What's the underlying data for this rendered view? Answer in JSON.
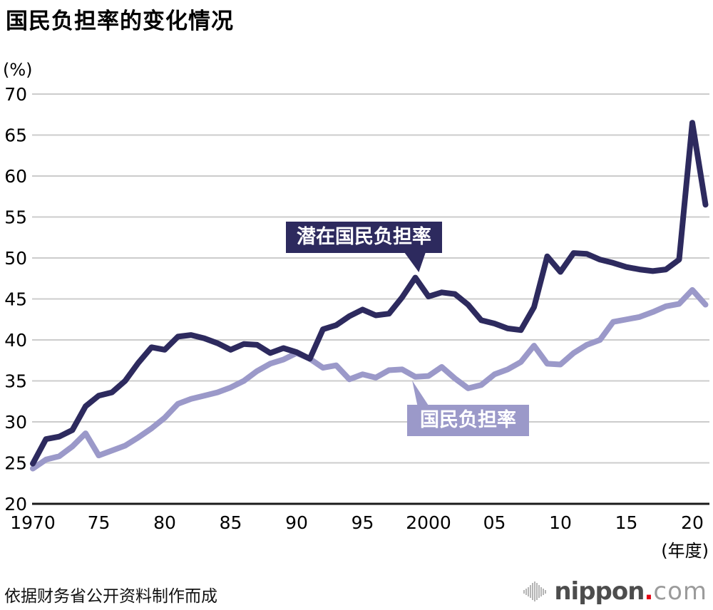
{
  "chart_data": {
    "type": "line",
    "title": "国民负担率的变化情况",
    "y_axis_unit": "(%)",
    "x_axis_unit": "(年度)",
    "ylim": [
      20,
      70
    ],
    "y_ticks": [
      20,
      25,
      30,
      35,
      40,
      45,
      50,
      55,
      60,
      65,
      70
    ],
    "grid": true,
    "legend_position": "inline-callout-labels",
    "x_ticks": [
      {
        "label": "1970",
        "year": 1970
      },
      {
        "label": "75",
        "year": 1975
      },
      {
        "label": "80",
        "year": 1980
      },
      {
        "label": "85",
        "year": 1985
      },
      {
        "label": "90",
        "year": 1990
      },
      {
        "label": "95",
        "year": 1995
      },
      {
        "label": "2000",
        "year": 2000
      },
      {
        "label": "05",
        "year": 2005
      },
      {
        "label": "10",
        "year": 2010
      },
      {
        "label": "15",
        "year": 2015
      },
      {
        "label": "20",
        "year": 2020
      }
    ],
    "years": [
      1970,
      1971,
      1972,
      1973,
      1974,
      1975,
      1976,
      1977,
      1978,
      1979,
      1980,
      1981,
      1982,
      1983,
      1984,
      1985,
      1986,
      1987,
      1988,
      1989,
      1990,
      1991,
      1992,
      1993,
      1994,
      1995,
      1996,
      1997,
      1998,
      1999,
      2000,
      2001,
      2002,
      2003,
      2004,
      2005,
      2006,
      2007,
      2008,
      2009,
      2010,
      2011,
      2012,
      2013,
      2014,
      2015,
      2016,
      2017,
      2018,
      2019,
      2020,
      2021
    ],
    "series": [
      {
        "name": "潜在国民负担率",
        "color": "#2d2a5e",
        "values": [
          24.9,
          27.9,
          28.2,
          29.0,
          31.9,
          33.2,
          33.6,
          35.0,
          37.2,
          39.1,
          38.8,
          40.4,
          40.6,
          40.2,
          39.6,
          38.8,
          39.5,
          39.4,
          38.4,
          39.0,
          38.5,
          37.7,
          41.3,
          41.8,
          42.9,
          43.7,
          43.0,
          43.2,
          45.2,
          47.6,
          45.3,
          45.8,
          45.6,
          44.3,
          42.4,
          42.0,
          41.4,
          41.2,
          44.0,
          50.2,
          48.3,
          50.6,
          50.5,
          49.8,
          49.4,
          48.9,
          48.6,
          48.4,
          48.6,
          49.8,
          66.5,
          56.5
        ]
      },
      {
        "name": "国民负担率",
        "color": "#9b99c9",
        "values": [
          24.3,
          25.4,
          25.8,
          27.0,
          28.6,
          25.9,
          26.5,
          27.1,
          28.1,
          29.2,
          30.5,
          32.2,
          32.8,
          33.2,
          33.6,
          34.2,
          35.0,
          36.2,
          37.1,
          37.6,
          38.4,
          37.7,
          36.6,
          36.9,
          35.2,
          35.8,
          35.4,
          36.3,
          36.4,
          35.5,
          35.6,
          36.7,
          35.3,
          34.1,
          34.5,
          35.8,
          36.4,
          37.3,
          39.3,
          37.1,
          37.0,
          38.4,
          39.4,
          40.0,
          42.2,
          42.5,
          42.8,
          43.4,
          44.1,
          44.4,
          46.1,
          44.3
        ]
      }
    ]
  },
  "footer": {
    "source_note": "依据财务省公开资料制作而成",
    "logo": {
      "icon": "soundwave-bars-icon",
      "name": "nippon",
      "dot": ".",
      "tld": "com",
      "dot_color": "#e60012"
    }
  }
}
